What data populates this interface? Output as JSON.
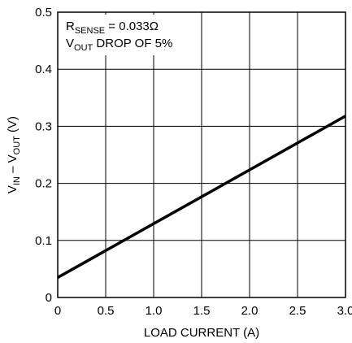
{
  "chart_data": {
    "type": "line",
    "title": "",
    "xlabel": "LOAD CURRENT (A)",
    "ylabel": {
      "v1": "V",
      "v1_sub": "IN",
      "sep": " – ",
      "v2": "V",
      "v2_sub": "OUT",
      "unit": " (V)"
    },
    "xlim": [
      0,
      3.0
    ],
    "ylim": [
      0,
      0.5
    ],
    "xticks": [
      0,
      0.5,
      1.0,
      1.5,
      2.0,
      2.5,
      3.0
    ],
    "xtick_labels": [
      "0",
      "0.5",
      "1.0",
      "1.5",
      "2.0",
      "2.5",
      "3.0"
    ],
    "yticks": [
      0,
      0.1,
      0.2,
      0.3,
      0.4,
      0.5
    ],
    "ytick_labels": [
      "0",
      "0.1",
      "0.2",
      "0.3",
      "0.4",
      "0.5"
    ],
    "grid": true,
    "legend": "none",
    "series": [
      {
        "x": [
          0,
          3.0
        ],
        "values": [
          0.035,
          0.318
        ]
      }
    ],
    "annotations": {
      "line1": {
        "main": "R",
        "sub": "SENSE",
        "rest": " = 0.033Ω"
      },
      "line2": {
        "main": "V",
        "sub": "OUT",
        "rest": " DROP OF 5%"
      }
    },
    "colors": {
      "line": "#000000",
      "grid": "#000000",
      "background": "#ffffff"
    }
  }
}
